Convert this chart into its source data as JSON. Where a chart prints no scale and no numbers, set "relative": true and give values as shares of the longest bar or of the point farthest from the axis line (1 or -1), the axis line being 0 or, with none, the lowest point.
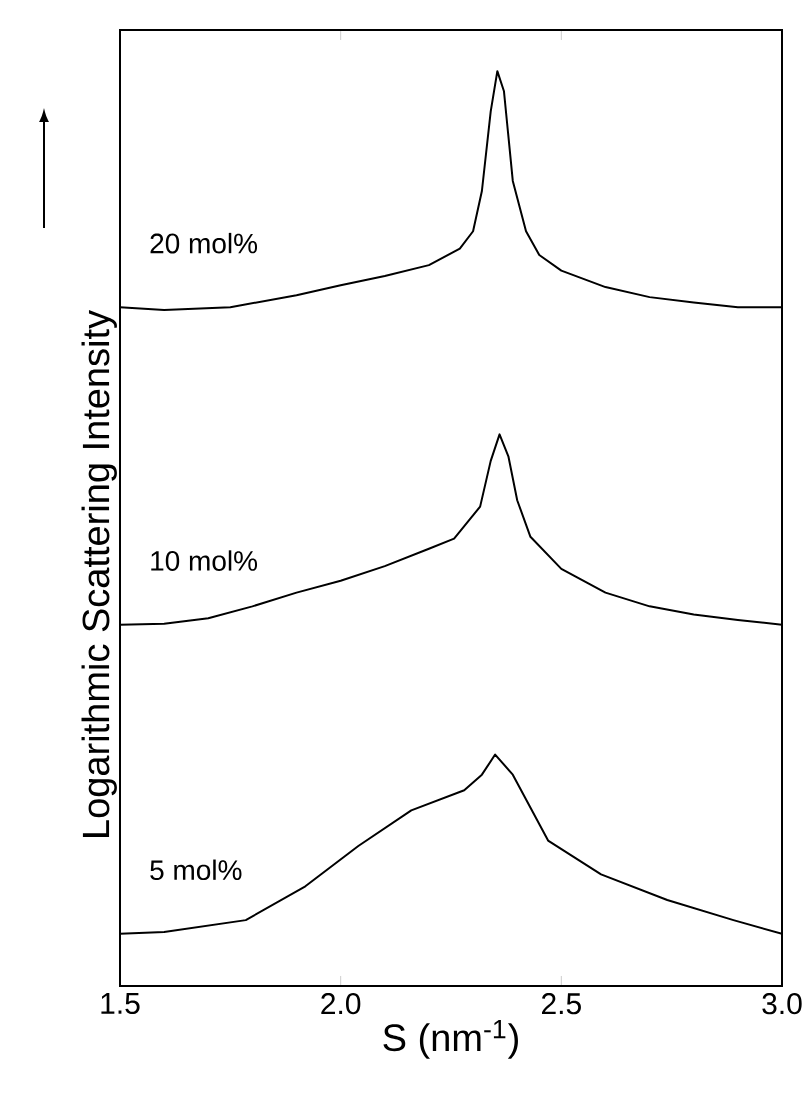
{
  "chart_data": {
    "type": "line",
    "relative": true,
    "xlabel": "S (nm$^{-1}$)",
    "ylabel": "Logarithmic Scattering Intensity",
    "xlim": [
      1.5,
      3.0
    ],
    "xticks": [
      1.5,
      {
        "value": 2,
        "label": "2.0"
      },
      2.5,
      {
        "value": 3,
        "label": "3.0"
      }
    ],
    "tick_labels": "x",
    "grid": false,
    "legend": false,
    "marker": "none",
    "line_style": "solid",
    "series": [
      {
        "name": "20 mol%",
        "color": "#000000",
        "x": [
          1.5,
          1.6,
          1.75,
          1.9,
          2.0,
          2.1,
          2.2,
          2.27,
          2.3,
          2.32,
          2.34,
          2.355,
          2.37,
          2.39,
          2.42,
          2.45,
          2.5,
          2.6,
          2.7,
          2.8,
          2.9,
          3.0
        ],
        "values": [
          0.742,
          0.739,
          0.742,
          0.755,
          0.766,
          0.776,
          0.788,
          0.806,
          0.825,
          0.869,
          0.956,
          1.0,
          0.978,
          0.88,
          0.825,
          0.799,
          0.782,
          0.764,
          0.753,
          0.747,
          0.742,
          0.742
        ]
      },
      {
        "name": "10 mol%",
        "color": "#000000",
        "x": [
          1.5,
          1.6,
          1.7,
          1.8,
          1.9,
          2.0,
          2.1,
          2.2,
          2.257,
          2.316,
          2.34,
          2.36,
          2.38,
          2.4,
          2.43,
          2.5,
          2.6,
          2.7,
          2.8,
          2.9,
          3.0
        ],
        "values": [
          0.395,
          0.396,
          0.402,
          0.415,
          0.43,
          0.443,
          0.459,
          0.478,
          0.489,
          0.524,
          0.574,
          0.603,
          0.579,
          0.531,
          0.491,
          0.456,
          0.43,
          0.415,
          0.406,
          0.4,
          0.395
        ]
      },
      {
        "name": "5 mol%",
        "color": "#000000",
        "x": [
          1.5,
          1.6,
          1.785,
          1.92,
          2.04,
          2.16,
          2.28,
          2.32,
          2.35,
          2.39,
          2.47,
          2.59,
          2.74,
          2.89,
          3.0
        ],
        "values": [
          0.057,
          0.059,
          0.072,
          0.109,
          0.153,
          0.192,
          0.214,
          0.231,
          0.253,
          0.231,
          0.159,
          0.122,
          0.094,
          0.072,
          0.057
        ]
      }
    ]
  }
}
